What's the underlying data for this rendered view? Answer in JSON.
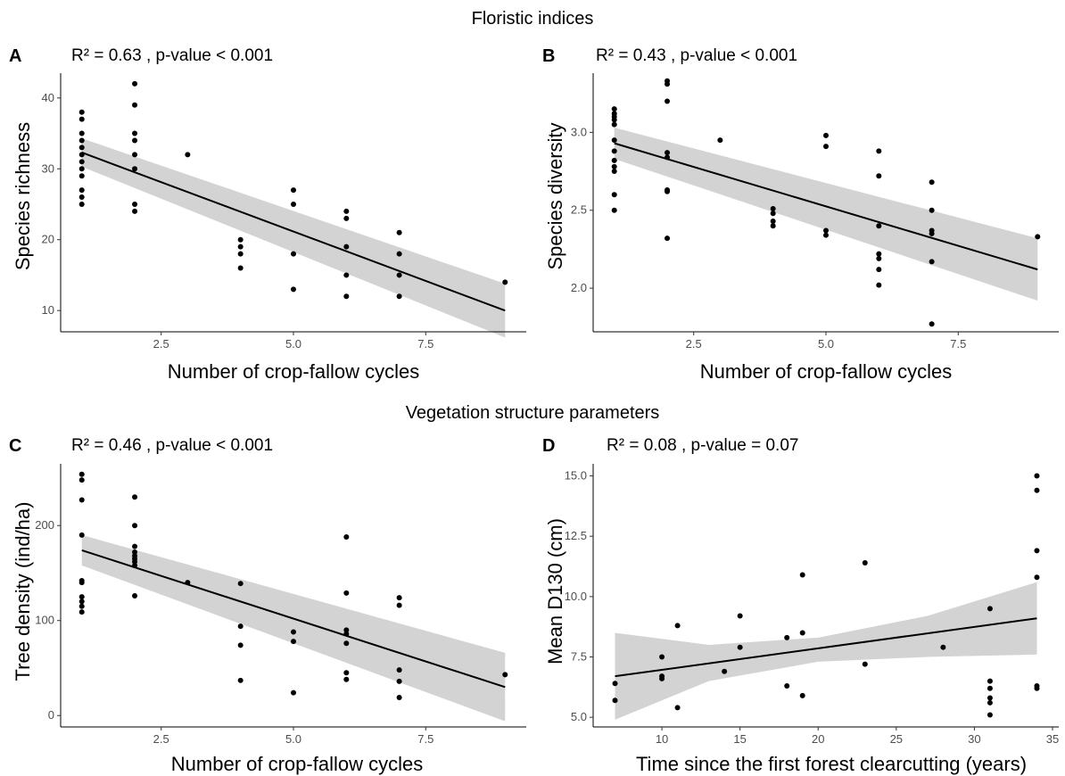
{
  "figure": {
    "section_titles": [
      "Floristic indices",
      "Vegetation structure parameters"
    ]
  },
  "chart_data": [
    {
      "panel": "A",
      "type": "scatter",
      "stats": "R² = 0.63 , p-value < 0.001",
      "xlabel": "Number of crop-fallow cycles",
      "ylabel": "Species richness",
      "xlim": [
        0.6,
        9.4
      ],
      "ylim": [
        7,
        43.5
      ],
      "xticks": [
        2.5,
        5.0,
        7.5
      ],
      "xtick_labels": [
        "2.5",
        "5.0",
        "7.5"
      ],
      "yticks": [
        10,
        20,
        30,
        40
      ],
      "ytick_labels": [
        "10",
        "20",
        "30",
        "40"
      ],
      "grid": false,
      "points": [
        [
          1,
          38
        ],
        [
          1,
          37
        ],
        [
          1,
          35
        ],
        [
          1,
          34
        ],
        [
          1,
          33
        ],
        [
          1,
          32
        ],
        [
          1,
          31
        ],
        [
          1,
          30
        ],
        [
          1,
          29
        ],
        [
          1,
          27
        ],
        [
          1,
          26
        ],
        [
          1,
          25
        ],
        [
          2,
          42
        ],
        [
          2,
          39
        ],
        [
          2,
          35
        ],
        [
          2,
          34
        ],
        [
          2,
          32
        ],
        [
          2,
          30
        ],
        [
          2,
          25
        ],
        [
          2,
          24
        ],
        [
          3,
          32
        ],
        [
          4,
          20
        ],
        [
          4,
          19
        ],
        [
          4,
          18
        ],
        [
          4,
          16
        ],
        [
          5,
          27
        ],
        [
          5,
          25
        ],
        [
          5,
          18
        ],
        [
          5,
          13
        ],
        [
          6,
          24
        ],
        [
          6,
          23
        ],
        [
          6,
          19
        ],
        [
          6,
          15
        ],
        [
          6,
          12
        ],
        [
          7,
          21
        ],
        [
          7,
          18
        ],
        [
          7,
          15
        ],
        [
          7,
          12
        ],
        [
          9,
          14
        ]
      ],
      "fit_line": [
        [
          1,
          32.3
        ],
        [
          9,
          10
        ]
      ],
      "confidence_band": {
        "x": [
          1,
          9
        ],
        "upper": [
          34.3,
          13.8
        ],
        "lower": [
          30.3,
          6.2
        ]
      }
    },
    {
      "panel": "B",
      "type": "scatter",
      "stats": "R² = 0.43 , p-value < 0.001",
      "xlabel": "Number of crop-fallow cycles",
      "ylabel": "Species diversity",
      "xlim": [
        0.6,
        9.4
      ],
      "ylim": [
        1.72,
        3.38
      ],
      "xticks": [
        2.5,
        5.0,
        7.5
      ],
      "xtick_labels": [
        "2.5",
        "5.0",
        "7.5"
      ],
      "yticks": [
        2.0,
        2.5,
        3.0
      ],
      "ytick_labels": [
        "2.0",
        "2.5",
        "3.0"
      ],
      "grid": false,
      "points": [
        [
          1,
          3.15
        ],
        [
          1,
          3.12
        ],
        [
          1,
          3.1
        ],
        [
          1,
          3.08
        ],
        [
          1,
          3.05
        ],
        [
          1,
          2.95
        ],
        [
          1,
          2.88
        ],
        [
          1,
          2.82
        ],
        [
          1,
          2.78
        ],
        [
          1,
          2.75
        ],
        [
          1,
          2.6
        ],
        [
          1,
          2.5
        ],
        [
          2,
          3.33
        ],
        [
          2,
          3.31
        ],
        [
          2,
          3.2
        ],
        [
          2,
          2.87
        ],
        [
          2,
          2.84
        ],
        [
          2,
          2.63
        ],
        [
          2,
          2.62
        ],
        [
          2,
          2.32
        ],
        [
          3,
          2.95
        ],
        [
          4,
          2.51
        ],
        [
          4,
          2.48
        ],
        [
          4,
          2.43
        ],
        [
          4,
          2.4
        ],
        [
          5,
          2.98
        ],
        [
          5,
          2.91
        ],
        [
          5,
          2.37
        ],
        [
          5,
          2.34
        ],
        [
          6,
          2.88
        ],
        [
          6,
          2.72
        ],
        [
          6,
          2.4
        ],
        [
          6,
          2.22
        ],
        [
          6,
          2.19
        ],
        [
          6,
          2.12
        ],
        [
          6,
          2.02
        ],
        [
          7,
          2.68
        ],
        [
          7,
          2.5
        ],
        [
          7,
          2.37
        ],
        [
          7,
          2.35
        ],
        [
          7,
          2.17
        ],
        [
          7,
          1.77
        ],
        [
          9,
          2.33
        ]
      ],
      "fit_line": [
        [
          1,
          2.93
        ],
        [
          9,
          2.12
        ]
      ],
      "confidence_band": {
        "x": [
          1,
          9
        ],
        "upper": [
          3.03,
          2.32
        ],
        "lower": [
          2.83,
          1.92
        ]
      }
    },
    {
      "panel": "C",
      "type": "scatter",
      "stats": "R² = 0.46 , p-value < 0.001",
      "xlabel": "Number of crop-fallow cycles",
      "ylabel": "Tree density (ind/ha)",
      "xlim": [
        0.6,
        9.4
      ],
      "ylim": [
        -12,
        265
      ],
      "xticks": [
        2.5,
        5.0,
        7.5
      ],
      "xtick_labels": [
        "2.5",
        "5.0",
        "7.5"
      ],
      "yticks": [
        0,
        100,
        200
      ],
      "ytick_labels": [
        "0",
        "100",
        "200"
      ],
      "grid": false,
      "points": [
        [
          1,
          254
        ],
        [
          1,
          248
        ],
        [
          1,
          227
        ],
        [
          1,
          190
        ],
        [
          1,
          142
        ],
        [
          1,
          140
        ],
        [
          1,
          125
        ],
        [
          1,
          120
        ],
        [
          1,
          115
        ],
        [
          1,
          109
        ],
        [
          2,
          230
        ],
        [
          2,
          200
        ],
        [
          2,
          178
        ],
        [
          2,
          172
        ],
        [
          2,
          168
        ],
        [
          2,
          165
        ],
        [
          2,
          162
        ],
        [
          2,
          158
        ],
        [
          2,
          126
        ],
        [
          3,
          140
        ],
        [
          4,
          139
        ],
        [
          4,
          94
        ],
        [
          4,
          74
        ],
        [
          4,
          37
        ],
        [
          5,
          88
        ],
        [
          5,
          78
        ],
        [
          5,
          24
        ],
        [
          6,
          188
        ],
        [
          6,
          129
        ],
        [
          6,
          90
        ],
        [
          6,
          86
        ],
        [
          6,
          76
        ],
        [
          6,
          45
        ],
        [
          6,
          38
        ],
        [
          7,
          124
        ],
        [
          7,
          116
        ],
        [
          7,
          48
        ],
        [
          7,
          36
        ],
        [
          7,
          19
        ],
        [
          9,
          43
        ]
      ],
      "fit_line": [
        [
          1,
          174
        ],
        [
          9,
          30
        ]
      ],
      "confidence_band": {
        "x": [
          1,
          9
        ],
        "upper": [
          190,
          66
        ],
        "lower": [
          158,
          -6
        ]
      }
    },
    {
      "panel": "D",
      "type": "scatter",
      "stats": "R² = 0.08 , p-value = 0.07",
      "xlabel": "Time since the first forest clearcutting (years)",
      "ylabel": "Mean D130 (cm)",
      "xlim": [
        5.6,
        35.4
      ],
      "ylim": [
        4.6,
        15.5
      ],
      "xticks": [
        10,
        15,
        20,
        25,
        30,
        35
      ],
      "xtick_labels": [
        "10",
        "15",
        "20",
        "25",
        "30",
        "35"
      ],
      "yticks": [
        5.0,
        7.5,
        10.0,
        12.5,
        15.0
      ],
      "ytick_labels": [
        "5.0",
        "7.5",
        "10.0",
        "12.5",
        "15.0"
      ],
      "grid": false,
      "points": [
        [
          7,
          6.4
        ],
        [
          7,
          5.7
        ],
        [
          10,
          7.5
        ],
        [
          10,
          6.7
        ],
        [
          10,
          6.6
        ],
        [
          11,
          8.8
        ],
        [
          11,
          5.4
        ],
        [
          14,
          6.9
        ],
        [
          15,
          9.2
        ],
        [
          15,
          7.9
        ],
        [
          18,
          8.3
        ],
        [
          18,
          6.3
        ],
        [
          19,
          10.9
        ],
        [
          19,
          8.5
        ],
        [
          19,
          5.9
        ],
        [
          23,
          11.4
        ],
        [
          23,
          7.2
        ],
        [
          28,
          7.9
        ],
        [
          31,
          9.5
        ],
        [
          31,
          6.5
        ],
        [
          31,
          6.2
        ],
        [
          31,
          5.8
        ],
        [
          31,
          5.6
        ],
        [
          31,
          5.1
        ],
        [
          34,
          15.0
        ],
        [
          34,
          14.4
        ],
        [
          34,
          11.9
        ],
        [
          34,
          10.8
        ],
        [
          34,
          6.3
        ],
        [
          34,
          6.2
        ]
      ],
      "fit_line": [
        [
          7,
          6.7
        ],
        [
          34,
          9.1
        ]
      ],
      "confidence_band": {
        "x": [
          7,
          13,
          20,
          27,
          34
        ],
        "upper": [
          8.5,
          8.0,
          8.3,
          9.2,
          10.6
        ],
        "lower": [
          4.9,
          6.5,
          7.3,
          7.5,
          7.6
        ]
      }
    }
  ]
}
